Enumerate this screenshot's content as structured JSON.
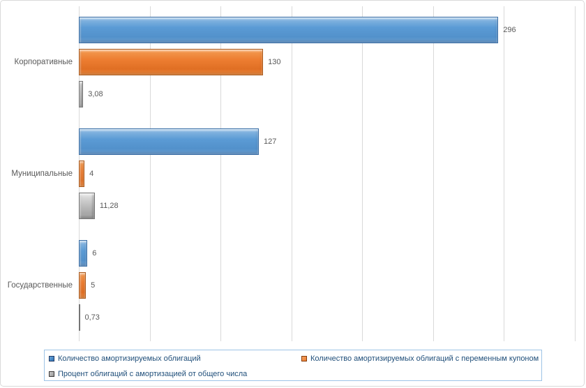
{
  "chart_data": {
    "type": "bar",
    "orientation": "horizontal",
    "title": "",
    "xlabel": "",
    "ylabel": "",
    "grid": true,
    "legend_position": "bottom",
    "xlim": [
      0,
      350
    ],
    "gridline_step": 50,
    "categories": [
      "Корпоративные",
      "Муниципальные",
      "Государственные"
    ],
    "series": [
      {
        "name": "Количество амортизируемых облигаций",
        "color": "#5B9BD5",
        "values": [
          296,
          127,
          6
        ],
        "value_labels": [
          "296",
          "127",
          "6"
        ]
      },
      {
        "name": "Количество амортизируемых облигаций с переменным купоном",
        "color": "#ED7D31",
        "values": [
          130,
          4,
          5
        ],
        "value_labels": [
          "130",
          "4",
          "5"
        ]
      },
      {
        "name": "Процент облигаций с амортизацией от общего числа",
        "color": "#A6A6A6",
        "values": [
          3.08,
          11.28,
          0.73
        ],
        "value_labels": [
          "3,08",
          "11,28",
          "0,73"
        ]
      }
    ]
  },
  "colors": {
    "gridline": "#D9D9D9",
    "category_label": "#595959",
    "value_label": "#595959",
    "legend_text": "#1F4E79",
    "legend_border": "#9DC3E6",
    "chart_border": "#D9D9D9"
  }
}
